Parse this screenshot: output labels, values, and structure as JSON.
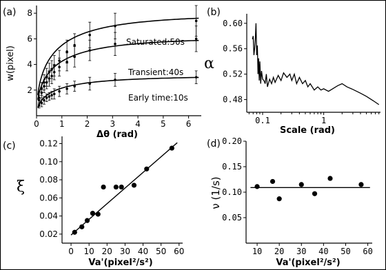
{
  "figure": {
    "border_color": "#000000"
  },
  "chart_data": [
    {
      "panel": "(a)",
      "type": "scatter",
      "xlabel": "Δθ (rad)",
      "ylabel": "w(pixel)",
      "xlim": [
        0,
        6.5
      ],
      "ylim": [
        0,
        8.6
      ],
      "xticks": [
        "0",
        "1",
        "2",
        "3",
        "4",
        "5",
        "6"
      ],
      "yticks": [
        "2",
        "4",
        "6",
        "8"
      ],
      "annotations": [
        "Saturated:50s",
        "Transient:40s",
        "Early time:10s"
      ],
      "series": [
        {
          "fit_saturation": 7.9,
          "points": [
            [
              0.1,
              1.4
            ],
            [
              0.2,
              2.1
            ],
            [
              0.3,
              2.6
            ],
            [
              0.4,
              3.0
            ],
            [
              0.5,
              3.4
            ],
            [
              0.6,
              3.6
            ],
            [
              0.7,
              3.9
            ],
            [
              0.9,
              4.3
            ],
            [
              1.2,
              5.0
            ],
            [
              1.5,
              5.5
            ],
            [
              2.1,
              6.3
            ],
            [
              3.1,
              7.0
            ],
            [
              6.3,
              7.4
            ]
          ],
          "errors": [
            0.5,
            0.5,
            0.6,
            0.7,
            0.7,
            0.7,
            0.8,
            0.8,
            0.9,
            0.9,
            1.0,
            1.0,
            1.2
          ]
        },
        {
          "fit_saturation": 6.1,
          "points": [
            [
              0.1,
              1.2
            ],
            [
              0.2,
              1.8
            ],
            [
              0.3,
              2.3
            ],
            [
              0.4,
              2.6
            ],
            [
              0.5,
              2.9
            ],
            [
              0.6,
              3.1
            ],
            [
              0.7,
              3.4
            ],
            [
              0.9,
              3.8
            ],
            [
              1.2,
              4.2
            ],
            [
              1.5,
              4.6
            ],
            [
              2.1,
              5.1
            ],
            [
              3.1,
              5.6
            ],
            [
              6.3,
              6.0
            ]
          ],
          "errors": [
            0.4,
            0.4,
            0.5,
            0.5,
            0.6,
            0.6,
            0.6,
            0.7,
            0.7,
            0.8,
            0.8,
            0.9,
            1.0
          ]
        },
        {
          "fit_saturation": 3.1,
          "points": [
            [
              0.1,
              0.8
            ],
            [
              0.2,
              1.0
            ],
            [
              0.3,
              1.2
            ],
            [
              0.4,
              1.4
            ],
            [
              0.5,
              1.5
            ],
            [
              0.6,
              1.6
            ],
            [
              0.7,
              1.7
            ],
            [
              0.9,
              1.9
            ],
            [
              1.2,
              2.1
            ],
            [
              1.5,
              2.3
            ],
            [
              2.1,
              2.5
            ],
            [
              3.1,
              2.8
            ],
            [
              6.3,
              3.0
            ]
          ],
          "errors": [
            0.2,
            0.3,
            0.3,
            0.3,
            0.3,
            0.3,
            0.4,
            0.4,
            0.4,
            0.4,
            0.5,
            0.5,
            0.5
          ]
        }
      ]
    },
    {
      "panel": "(b)",
      "type": "line",
      "xscale": "log",
      "xlabel": "Scale (rad)",
      "ylabel": "α",
      "xlim": [
        0.055,
        8.5
      ],
      "ylim": [
        0.46,
        0.615
      ],
      "xticks": [
        "0.1",
        "1"
      ],
      "yticks": [
        "0.48",
        "0.52",
        "0.56",
        "0.60"
      ],
      "series": [
        {
          "points": [
            [
              0.068,
              0.575
            ],
            [
              0.07,
              0.58
            ],
            [
              0.072,
              0.55
            ],
            [
              0.074,
              0.56
            ],
            [
              0.076,
              0.575
            ],
            [
              0.078,
              0.6
            ],
            [
              0.08,
              0.55
            ],
            [
              0.082,
              0.565
            ],
            [
              0.084,
              0.52
            ],
            [
              0.086,
              0.545
            ],
            [
              0.088,
              0.51
            ],
            [
              0.09,
              0.54
            ],
            [
              0.093,
              0.505
            ],
            [
              0.096,
              0.525
            ],
            [
              0.1,
              0.512
            ],
            [
              0.105,
              0.51
            ],
            [
              0.11,
              0.505
            ],
            [
              0.115,
              0.52
            ],
            [
              0.12,
              0.5
            ],
            [
              0.13,
              0.512
            ],
            [
              0.14,
              0.505
            ],
            [
              0.15,
              0.515
            ],
            [
              0.16,
              0.507
            ],
            [
              0.18,
              0.518
            ],
            [
              0.2,
              0.51
            ],
            [
              0.22,
              0.522
            ],
            [
              0.25,
              0.515
            ],
            [
              0.28,
              0.52
            ],
            [
              0.3,
              0.51
            ],
            [
              0.33,
              0.52
            ],
            [
              0.36,
              0.505
            ],
            [
              0.4,
              0.515
            ],
            [
              0.45,
              0.505
            ],
            [
              0.5,
              0.51
            ],
            [
              0.55,
              0.5
            ],
            [
              0.6,
              0.505
            ],
            [
              0.7,
              0.495
            ],
            [
              0.8,
              0.5
            ],
            [
              0.9,
              0.495
            ],
            [
              1.0,
              0.497
            ],
            [
              1.2,
              0.493
            ],
            [
              1.4,
              0.497
            ],
            [
              1.7,
              0.502
            ],
            [
              2.0,
              0.505
            ],
            [
              2.4,
              0.5
            ],
            [
              3.0,
              0.496
            ],
            [
              4.0,
              0.49
            ],
            [
              5.0,
              0.485
            ],
            [
              6.5,
              0.478
            ],
            [
              8.0,
              0.472
            ]
          ]
        }
      ]
    },
    {
      "panel": "(c)",
      "type": "scatter",
      "xlabel": "Va'(pixel²/s²)",
      "ylabel": "ξ",
      "xlim": [
        -5,
        62
      ],
      "ylim": [
        0.01,
        0.128
      ],
      "xticks": [
        "0",
        "10",
        "20",
        "30",
        "40",
        "50",
        "60"
      ],
      "yticks": [
        "0.02",
        "0.04",
        "0.06",
        "0.08",
        "0.10",
        "0.12"
      ],
      "fit": {
        "x": [
          0,
          59
        ],
        "y": [
          0.019,
          0.121
        ]
      },
      "points": [
        [
          2,
          0.022
        ],
        [
          6,
          0.028
        ],
        [
          9,
          0.035
        ],
        [
          12,
          0.043
        ],
        [
          15,
          0.042
        ],
        [
          18,
          0.072
        ],
        [
          25,
          0.072
        ],
        [
          28,
          0.072
        ],
        [
          35,
          0.074
        ],
        [
          42,
          0.092
        ],
        [
          56,
          0.115
        ]
      ]
    },
    {
      "panel": "(d)",
      "type": "scatter",
      "xlabel": "Va'(pixel²/s²)",
      "ylabel": "ν (1/s)",
      "xlim": [
        5,
        62
      ],
      "ylim": [
        0,
        0.2
      ],
      "xticks": [
        "10",
        "20",
        "30",
        "40",
        "50",
        "60"
      ],
      "yticks": [
        "0.05",
        "0.10",
        "0.15",
        "0.20"
      ],
      "fit": {
        "x": [
          7,
          61
        ],
        "y": [
          0.109,
          0.109
        ]
      },
      "points": [
        [
          10,
          0.111
        ],
        [
          17,
          0.121
        ],
        [
          20,
          0.087
        ],
        [
          30,
          0.115
        ],
        [
          36,
          0.097
        ],
        [
          43,
          0.127
        ],
        [
          57,
          0.115
        ]
      ]
    }
  ]
}
